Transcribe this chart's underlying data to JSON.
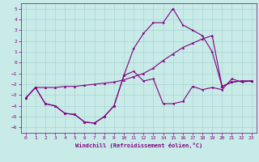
{
  "title": "",
  "xlabel": "Windchill (Refroidissement éolien,°C)",
  "ylabel": "",
  "background_color": "#c8ebe8",
  "grid_color": "#aad4d0",
  "line_color": "#800080",
  "xlim": [
    -0.5,
    23.5
  ],
  "ylim": [
    -6.5,
    5.5
  ],
  "xticks": [
    0,
    1,
    2,
    3,
    4,
    5,
    6,
    7,
    8,
    9,
    10,
    11,
    12,
    13,
    14,
    15,
    16,
    17,
    18,
    19,
    20,
    21,
    22,
    23
  ],
  "yticks": [
    -6,
    -5,
    -4,
    -3,
    -2,
    -1,
    0,
    1,
    2,
    3,
    4,
    5
  ],
  "series1_x": [
    0,
    1,
    2,
    3,
    4,
    5,
    6,
    7,
    8,
    9,
    10,
    11,
    12,
    13,
    14,
    15,
    16,
    17,
    18,
    19,
    20,
    21,
    22,
    23
  ],
  "series1_y": [
    -3.3,
    -2.3,
    -3.8,
    -4.0,
    -4.7,
    -4.8,
    -5.5,
    -5.6,
    -5.0,
    -4.0,
    -1.2,
    -0.8,
    -1.7,
    -1.5,
    -3.8,
    -3.8,
    -3.6,
    -2.2,
    -2.5,
    -2.3,
    -2.5,
    -1.5,
    -1.8,
    -1.7
  ],
  "series2_x": [
    0,
    1,
    2,
    3,
    4,
    5,
    6,
    7,
    8,
    9,
    10,
    11,
    12,
    13,
    14,
    15,
    16,
    17,
    18,
    19,
    20,
    21,
    22,
    23
  ],
  "series2_y": [
    -3.3,
    -2.3,
    -3.8,
    -4.0,
    -4.7,
    -4.8,
    -5.5,
    -5.6,
    -5.0,
    -4.0,
    -1.2,
    1.3,
    2.7,
    3.7,
    3.7,
    5.0,
    3.5,
    3.0,
    2.5,
    1.0,
    -2.2,
    -1.8,
    -1.7,
    -1.7
  ],
  "series3_x": [
    0,
    1,
    2,
    3,
    4,
    5,
    6,
    7,
    8,
    9,
    10,
    11,
    12,
    13,
    14,
    15,
    16,
    17,
    18,
    19,
    20,
    21,
    22,
    23
  ],
  "series3_y": [
    -3.3,
    -2.3,
    -2.3,
    -2.3,
    -2.2,
    -2.2,
    -2.1,
    -2.0,
    -1.9,
    -1.8,
    -1.6,
    -1.3,
    -1.0,
    -0.5,
    0.2,
    0.8,
    1.4,
    1.8,
    2.2,
    2.5,
    -2.2,
    -1.8,
    -1.7,
    -1.7
  ]
}
